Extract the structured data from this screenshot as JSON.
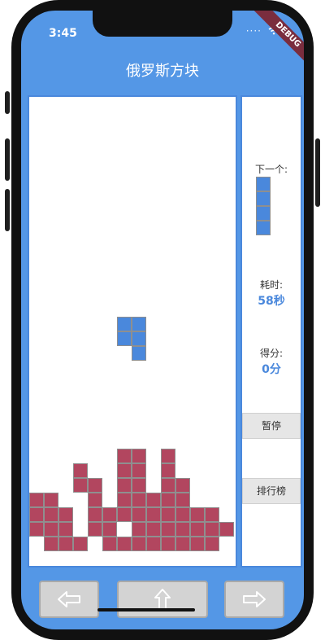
{
  "status": {
    "time": "3:45"
  },
  "debug": {
    "label": "DEBUG"
  },
  "app": {
    "title": "俄罗斯方块"
  },
  "panel": {
    "next_label": "下一个:",
    "time_label": "耗时:",
    "time_value": "58秒",
    "score_label": "得分:",
    "score_value": "0分",
    "pause_label": "暂停",
    "leaderboard_label": "排行榜"
  },
  "controls": {
    "left_icon": "left-arrow-icon",
    "rotate_icon": "up-arrow-icon",
    "right_icon": "right-arrow-icon"
  },
  "colors": {
    "accent": "#4a88dc",
    "block": "#b2465f",
    "frame": "#111111"
  },
  "board": {
    "cols": 14,
    "rows": 32,
    "active_piece": [
      {
        "c": 6,
        "r": 15
      },
      {
        "c": 7,
        "r": 15
      },
      {
        "c": 6,
        "r": 16
      },
      {
        "c": 7,
        "r": 16
      },
      {
        "c": 7,
        "r": 17
      }
    ],
    "stacked": [
      {
        "c": 6,
        "r": 24
      },
      {
        "c": 7,
        "r": 24
      },
      {
        "c": 9,
        "r": 24
      },
      {
        "c": 3,
        "r": 25
      },
      {
        "c": 6,
        "r": 25
      },
      {
        "c": 7,
        "r": 25
      },
      {
        "c": 9,
        "r": 25
      },
      {
        "c": 3,
        "r": 26
      },
      {
        "c": 4,
        "r": 26
      },
      {
        "c": 6,
        "r": 26
      },
      {
        "c": 7,
        "r": 26
      },
      {
        "c": 9,
        "r": 26
      },
      {
        "c": 10,
        "r": 26
      },
      {
        "c": 0,
        "r": 27
      },
      {
        "c": 1,
        "r": 27
      },
      {
        "c": 4,
        "r": 27
      },
      {
        "c": 6,
        "r": 27
      },
      {
        "c": 7,
        "r": 27
      },
      {
        "c": 8,
        "r": 27
      },
      {
        "c": 9,
        "r": 27
      },
      {
        "c": 10,
        "r": 27
      },
      {
        "c": 0,
        "r": 28
      },
      {
        "c": 1,
        "r": 28
      },
      {
        "c": 2,
        "r": 28
      },
      {
        "c": 4,
        "r": 28
      },
      {
        "c": 5,
        "r": 28
      },
      {
        "c": 6,
        "r": 28
      },
      {
        "c": 7,
        "r": 28
      },
      {
        "c": 8,
        "r": 28
      },
      {
        "c": 9,
        "r": 28
      },
      {
        "c": 10,
        "r": 28
      },
      {
        "c": 11,
        "r": 28
      },
      {
        "c": 12,
        "r": 28
      },
      {
        "c": 0,
        "r": 29
      },
      {
        "c": 1,
        "r": 29
      },
      {
        "c": 2,
        "r": 29
      },
      {
        "c": 4,
        "r": 29
      },
      {
        "c": 5,
        "r": 29
      },
      {
        "c": 7,
        "r": 29
      },
      {
        "c": 8,
        "r": 29
      },
      {
        "c": 9,
        "r": 29
      },
      {
        "c": 10,
        "r": 29
      },
      {
        "c": 11,
        "r": 29
      },
      {
        "c": 12,
        "r": 29
      },
      {
        "c": 13,
        "r": 29
      },
      {
        "c": 1,
        "r": 30
      },
      {
        "c": 2,
        "r": 30
      },
      {
        "c": 3,
        "r": 30
      },
      {
        "c": 5,
        "r": 30
      },
      {
        "c": 6,
        "r": 30
      },
      {
        "c": 7,
        "r": 30
      },
      {
        "c": 8,
        "r": 30
      },
      {
        "c": 9,
        "r": 30
      },
      {
        "c": 10,
        "r": 30
      },
      {
        "c": 11,
        "r": 30
      },
      {
        "c": 12,
        "r": 30
      }
    ]
  }
}
